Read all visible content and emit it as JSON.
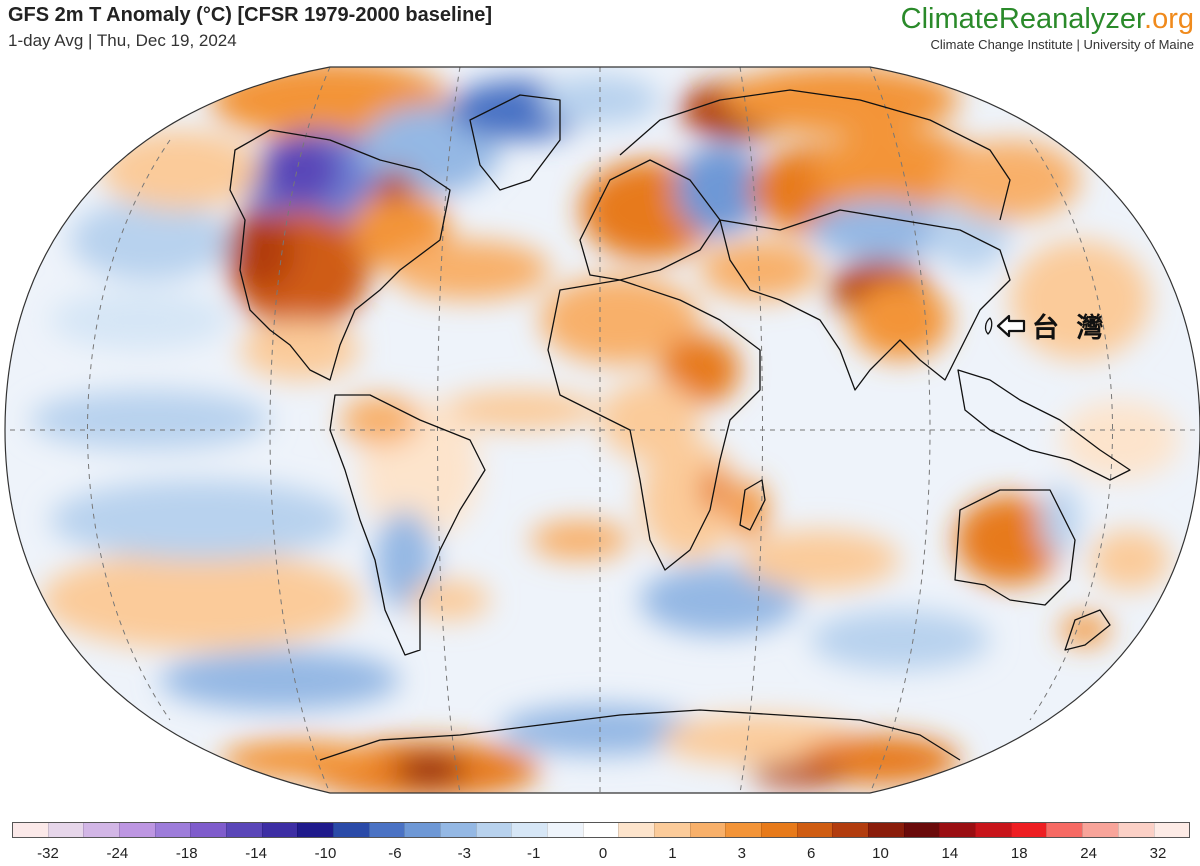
{
  "header": {
    "title": "GFS 2m T Anomaly (°C) [CFSR 1979-2000 baseline]",
    "subtitle": "1-day Avg | Thu, Dec 19, 2024"
  },
  "brand": {
    "name_part1": "ClimateReanalyzer",
    "name_part2": ".org",
    "name_color1": "#2a8a2a",
    "name_color2": "#f08a1c",
    "subtitle": "Climate Change Institute | University of Maine"
  },
  "annotation": {
    "label": "台 灣",
    "arrow_icon": "left-arrow-icon"
  },
  "colorbar": {
    "colors": [
      "#fbe9e9",
      "#e6d6ea",
      "#d2b6e6",
      "#bd96e2",
      "#9d7cda",
      "#7f5ccc",
      "#5a46b8",
      "#3d2ea4",
      "#1f1a8c",
      "#2a4aa8",
      "#4a72c4",
      "#6e98d6",
      "#94b8e4",
      "#b8d2ee",
      "#d6e6f6",
      "#eef4fb",
      "#ffffff",
      "#fde4cc",
      "#fbcb9a",
      "#f8b06a",
      "#f39438",
      "#e77a1a",
      "#cf5c12",
      "#b23c0e",
      "#8a1c0a",
      "#6a0a0a",
      "#9a0e12",
      "#c8141a",
      "#ee1e22",
      "#f66a64",
      "#f8a49a",
      "#fbd0c6",
      "#fdebe6"
    ],
    "tick_labels": [
      "-32",
      "-24",
      "-18",
      "-14",
      "-10",
      "-6",
      "-3",
      "-1",
      "0",
      "1",
      "3",
      "6",
      "10",
      "14",
      "18",
      "24",
      "32"
    ]
  }
}
